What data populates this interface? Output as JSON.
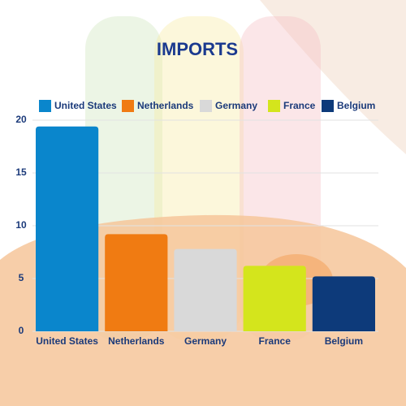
{
  "chart_data": {
    "type": "bar",
    "title": "IMPORTS",
    "categories": [
      "United States",
      "Netherlands",
      "Germany",
      "France",
      "Belgium"
    ],
    "values": [
      19.4,
      9.2,
      7.8,
      6.2,
      5.2
    ],
    "colors": [
      "#0a86cc",
      "#f07b12",
      "#d9d9d9",
      "#d4e51c",
      "#0d3a7a"
    ],
    "ylim": [
      0,
      20
    ],
    "yticks": [
      0,
      5,
      10,
      15,
      20
    ],
    "grid": true,
    "legend": "top"
  }
}
